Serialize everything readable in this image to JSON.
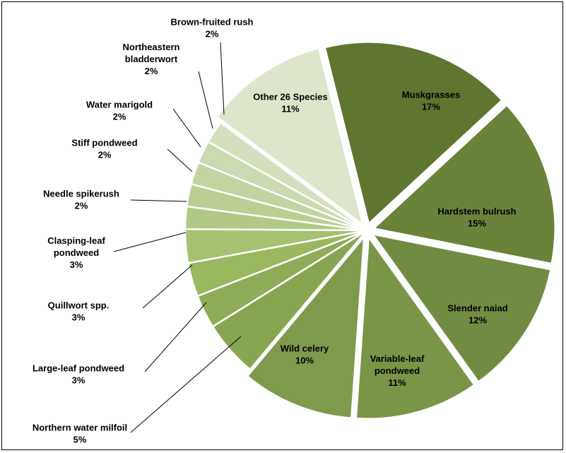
{
  "chart_data": {
    "type": "pie",
    "title": "",
    "slices": [
      {
        "label": "Muskgrasses",
        "value": 17,
        "display": "17%",
        "color": "#5f7530",
        "exploded": true
      },
      {
        "label": "Hardstem bulrush",
        "value": 15,
        "display": "15%",
        "color": "#6a823a",
        "exploded": true
      },
      {
        "label": "Slender naiad",
        "value": 12,
        "display": "12%",
        "color": "#728b42",
        "exploded": true
      },
      {
        "label": "Variable-leaf pondweed",
        "value": 11,
        "display": "11%",
        "color": "#7a9448",
        "exploded": true
      },
      {
        "label": "Wild celery",
        "value": 10,
        "display": "10%",
        "color": "#809a4d",
        "exploded": true
      },
      {
        "label": "Northern water milfoil",
        "value": 5,
        "display": "5%",
        "color": "#88a552",
        "exploded": false
      },
      {
        "label": "Large-leaf pondweed",
        "value": 3,
        "display": "3%",
        "color": "#8fac58",
        "exploded": false
      },
      {
        "label": "Quillwort spp.",
        "value": 3,
        "display": "3%",
        "color": "#99b85f",
        "exploded": false
      },
      {
        "label": "Clasping-leaf pondweed",
        "value": 3,
        "display": "3%",
        "color": "#a6c16f",
        "exploded": false
      },
      {
        "label": "Needle spikerush",
        "value": 2,
        "display": "2%",
        "color": "#b2c985",
        "exploded": false
      },
      {
        "label": "Stiff pondweed",
        "value": 2,
        "display": "2%",
        "color": "#bbcf93",
        "exploded": false
      },
      {
        "label": "Water marigold",
        "value": 2,
        "display": "2%",
        "color": "#c3d4a1",
        "exploded": false
      },
      {
        "label": "Northeastern bladderwort",
        "value": 2,
        "display": "2%",
        "color": "#ccdab0",
        "exploded": false
      },
      {
        "label": "Brown-fruited rush",
        "value": 2,
        "display": "2%",
        "color": "#d4e0bd",
        "exploded": false
      },
      {
        "label": "Other 26 Species",
        "value": 11,
        "display": "11%",
        "color": "#dde6cb",
        "exploded": true
      }
    ]
  }
}
